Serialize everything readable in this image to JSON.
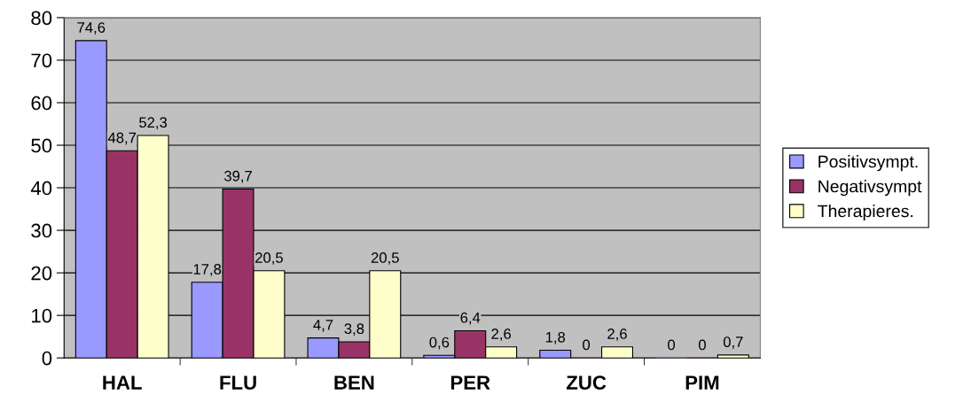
{
  "chart_data": {
    "type": "bar",
    "categories": [
      "HAL",
      "FLU",
      "BEN",
      "PER",
      "ZUC",
      "PIM"
    ],
    "series": [
      {
        "name": "Positivsympt.",
        "color": "#9999ff",
        "values": [
          74.6,
          17.8,
          4.7,
          0.6,
          1.8,
          0
        ],
        "value_labels": [
          "74,6",
          "17,8",
          "4,7",
          "0,6",
          "1,8",
          "0"
        ]
      },
      {
        "name": "Negativsympt",
        "color": "#993366",
        "values": [
          48.7,
          39.7,
          3.8,
          6.4,
          0,
          0
        ],
        "value_labels": [
          "48,7",
          "39,7",
          "3,8",
          "6,4",
          "0",
          "0"
        ]
      },
      {
        "name": "Therapieres.",
        "color": "#ffffcc",
        "values": [
          52.3,
          20.5,
          20.5,
          2.6,
          2.6,
          0.7
        ],
        "value_labels": [
          "52,3",
          "20,5",
          "20,5",
          "2,6",
          "2,6",
          "0,7"
        ]
      }
    ],
    "ylim": [
      0,
      80
    ],
    "yticks": [
      0,
      10,
      20,
      30,
      40,
      50,
      60,
      70,
      80
    ],
    "grid": "y",
    "legend": "right"
  }
}
